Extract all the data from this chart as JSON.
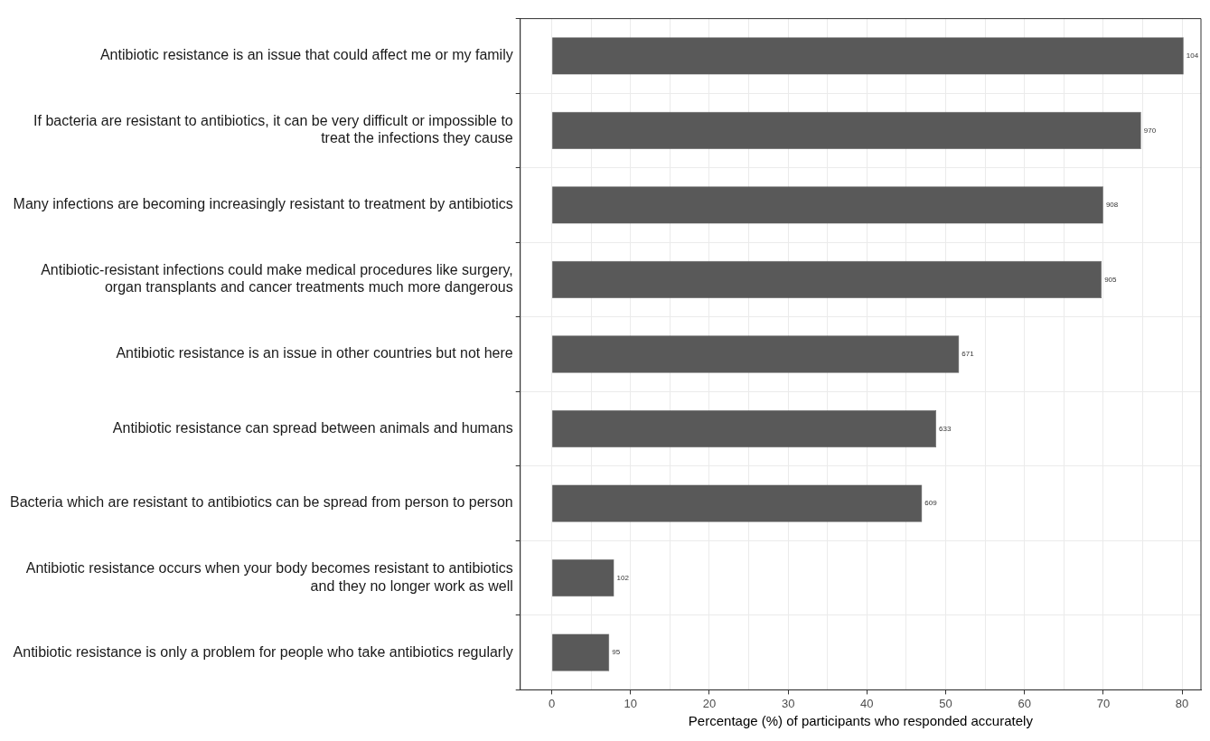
{
  "chart_data": {
    "type": "bar",
    "orientation": "horizontal",
    "xlabel": "Percentage (%) of participants who responded accurately",
    "categories": [
      "Antibiotic resistance is an issue that could affect me or my family",
      "If bacteria are resistant to antibiotics, it can be very difficult or impossible to treat the infections they cause",
      "Many infections are becoming increasingly resistant to treatment by antibiotics",
      "Antibiotic-resistant infections could make medical procedures like surgery, organ transplants and cancer treatments much more dangerous",
      "Antibiotic resistance is an issue in other countries but not here",
      "Antibiotic resistance can spread between animals and humans",
      "Bacteria which are resistant to antibiotics can be spread from person to person",
      "Antibiotic resistance occurs when your body becomes resistant to antibiotics and they no longer work as well",
      "Antibiotic resistance is only a problem for people who take antibiotics regularly"
    ],
    "values": [
      80.2,
      74.8,
      70.0,
      69.8,
      51.7,
      48.8,
      47.0,
      7.9,
      7.3
    ],
    "annotations": [
      {
        "text": "104",
        "x": 80.2,
        "y": "Antibiotic resistance is an issue that could affect me or my family"
      },
      {
        "text": "970",
        "x": 74.8,
        "y": "If bacteria are resistant to antibiotics, it can be very difficult or impossible to treat the infections they cause"
      },
      {
        "text": "908",
        "x": 70.0,
        "y": "Many infections are becoming increasingly resistant to treatment by antibiotics"
      },
      {
        "text": "905",
        "x": 69.8,
        "y": "Antibiotic-resistant infections could make medical procedures like surgery, organ transplants and cancer treatments much more dangerous"
      },
      {
        "text": "671",
        "x": 51.7,
        "y": "Antibiotic resistance is an issue in other countries but not here"
      },
      {
        "text": "633",
        "x": 48.8,
        "y": "Antibiotic resistance can spread between animals and humans"
      },
      {
        "text": "609",
        "x": 47.0,
        "y": "Bacteria which are resistant to antibiotics can be spread from person to person"
      },
      {
        "text": "102",
        "x": 7.9,
        "y": "Antibiotic resistance occurs when your body becomes resistant to antibiotics and they no longer work as well"
      },
      {
        "text": "95",
        "x": 7.3,
        "y": "Antibiotic resistance is only a problem for people who take antibiotics regularly"
      }
    ],
    "color": "#595959",
    "xlim": [
      -4,
      82.4
    ],
    "xticks": [
      0,
      {
        "value": 5,
        "label": null
      },
      10,
      {
        "value": 15,
        "label": null
      },
      20,
      {
        "value": 25,
        "label": null
      },
      30,
      {
        "value": 35,
        "label": null
      },
      40,
      {
        "value": 45,
        "label": null
      },
      50,
      {
        "value": 55,
        "label": null
      },
      60,
      {
        "value": 65,
        "label": null
      },
      70,
      {
        "value": 75,
        "label": null
      },
      80
    ],
    "grid": true,
    "legend": false
  }
}
